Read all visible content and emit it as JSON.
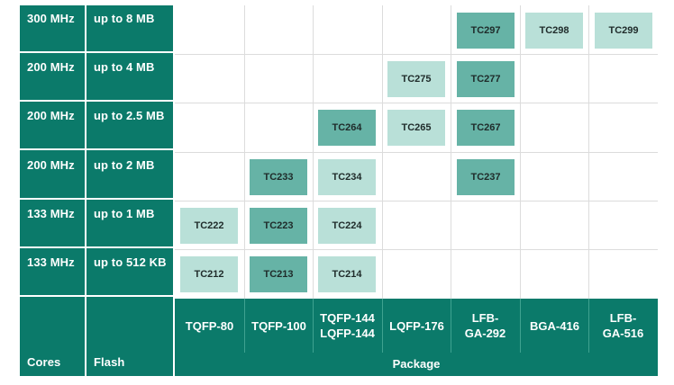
{
  "rows": [
    {
      "core": "300 MHz",
      "flash": "up to 8 MB"
    },
    {
      "core": "200 MHz",
      "flash": "up to 4 MB"
    },
    {
      "core": "200 MHz",
      "flash": "up to 2.5 MB"
    },
    {
      "core": "200 MHz",
      "flash": "up to 2 MB"
    },
    {
      "core": "133 MHz",
      "flash": "up to 1 MB"
    },
    {
      "core": "133 MHz",
      "flash": "up to 512 KB"
    }
  ],
  "labels": {
    "cores": "Cores",
    "flash": "Flash",
    "package": "Package"
  },
  "packages": [
    "TQFP-80",
    "TQFP-100",
    "TQFP-144\nLQFP-144",
    "LQFP-176",
    "LFB-\nGA-292",
    "BGA-416",
    "LFB-\nGA-516"
  ],
  "chips": [
    {
      "name": "TC297",
      "row": 0,
      "col": 4,
      "shade": "dark"
    },
    {
      "name": "TC298",
      "row": 0,
      "col": 5,
      "shade": "light"
    },
    {
      "name": "TC299",
      "row": 0,
      "col": 6,
      "shade": "light"
    },
    {
      "name": "TC275",
      "row": 1,
      "col": 3,
      "shade": "light"
    },
    {
      "name": "TC277",
      "row": 1,
      "col": 4,
      "shade": "dark"
    },
    {
      "name": "TC264",
      "row": 2,
      "col": 2,
      "shade": "dark"
    },
    {
      "name": "TC265",
      "row": 2,
      "col": 3,
      "shade": "light"
    },
    {
      "name": "TC267",
      "row": 2,
      "col": 4,
      "shade": "dark"
    },
    {
      "name": "TC233",
      "row": 3,
      "col": 1,
      "shade": "dark"
    },
    {
      "name": "TC234",
      "row": 3,
      "col": 2,
      "shade": "light"
    },
    {
      "name": "TC237",
      "row": 3,
      "col": 4,
      "shade": "dark"
    },
    {
      "name": "TC222",
      "row": 4,
      "col": 0,
      "shade": "light"
    },
    {
      "name": "TC223",
      "row": 4,
      "col": 1,
      "shade": "dark"
    },
    {
      "name": "TC224",
      "row": 4,
      "col": 2,
      "shade": "light"
    },
    {
      "name": "TC212",
      "row": 5,
      "col": 0,
      "shade": "light"
    },
    {
      "name": "TC213",
      "row": 5,
      "col": 1,
      "shade": "dark"
    },
    {
      "name": "TC214",
      "row": 5,
      "col": 2,
      "shade": "light"
    }
  ],
  "colors": {
    "teal": "#0b7a6a",
    "chip_dark": "#66b3a6",
    "chip_light": "#b9e0d8",
    "grid_line": "#dcdcdc"
  }
}
